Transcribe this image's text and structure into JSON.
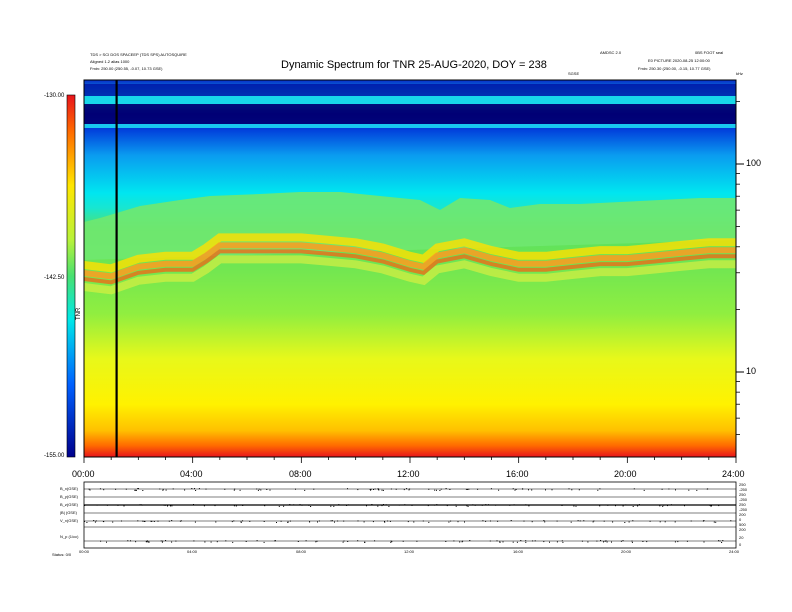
{
  "header": {
    "left_line1": "TDS > SCI DOS SPACEEP (TDS SPS) AUTOSQUIRE",
    "left_line2": "Aligned 1.2 alias 1000",
    "left_line3": "Fmin: 250.00 (250.55, -0.07, 10.73 GSE)",
    "right_line1": "AMDSC 2.0",
    "right_line2": "0BS FOOT seal",
    "right_line3": "E0 PICTURE 2020-08-25 12:00:00",
    "right_line4": "Fmin: 250.30 (250.00, -0.15, 10.77 GSE)",
    "right_tag": "SGSE",
    "right_unit": "kHz"
  },
  "title": "Dynamic Spectrum for TNR 25-AUG-2020, DOY = 238",
  "colorbar": {
    "max_label": "-130.00",
    "mid_label": "-142.50",
    "min_label": "-155.00",
    "unit_label": "TNR"
  },
  "chart_data": [
    {
      "type": "heatmap",
      "title": "Dynamic Spectrum for TNR 25-AUG-2020, DOY = 238",
      "x_ticks": [
        "00:00",
        "04:00",
        "08:00",
        "12:00",
        "16:00",
        "20:00",
        "24:00"
      ],
      "x_range": [
        0,
        24
      ],
      "y_scale": "log",
      "y_tick_labels": [
        "100",
        "10"
      ],
      "y_range_khz": [
        4,
        220
      ],
      "color_range": [
        -155.0,
        -130.0
      ],
      "color_ticks": [
        "-130.00",
        "-142.50",
        "-155.00"
      ],
      "dark_line_time_hours": 1.2,
      "emission_band_hours": [
        0,
        1,
        2,
        3,
        4,
        4.5,
        5,
        6,
        7,
        8,
        9,
        10,
        11,
        12,
        12.5,
        13,
        14,
        15,
        16,
        17,
        18,
        19,
        20,
        21,
        22,
        23,
        24
      ],
      "emission_band_khz": [
        28,
        27,
        30,
        31,
        31,
        34,
        38,
        38,
        38,
        38,
        37,
        36,
        34,
        31,
        30,
        34,
        36,
        33,
        31,
        31,
        32,
        33,
        33,
        34,
        35,
        36,
        36
      ]
    },
    {
      "type": "line",
      "title": "",
      "panel_labels": [
        "B_x(GSE)",
        "B_y(GSE)",
        "B_z(GSE)",
        "|B| (GSE)",
        "V_x(GSE)",
        "N_p (1/cc)"
      ],
      "x_ticks": [
        "00:00",
        "04:00",
        "08:00",
        "12:00",
        "16:00",
        "20:00",
        "24:00"
      ],
      "right_axis_labels": [
        "250",
        "-250",
        "250",
        "-250",
        "250",
        "-250",
        "200",
        "0",
        "500",
        "200",
        "20",
        "0"
      ],
      "footer_label": "Status: 0/0"
    }
  ],
  "bottom_x_ticks": [
    "00:00",
    "04:00",
    "08:00",
    "12:00",
    "16:00",
    "20:00",
    "24:00"
  ]
}
